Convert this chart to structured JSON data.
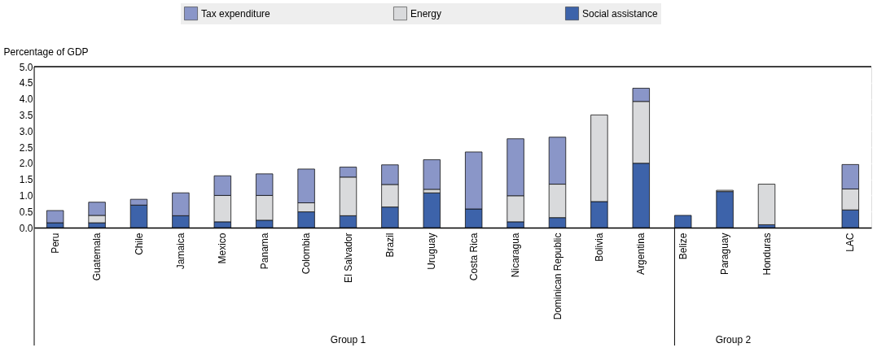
{
  "chart_data": {
    "type": "bar",
    "stacked": true,
    "ylabel": "Percentage of GDP",
    "categories": [
      "Peru",
      "Guatemala",
      "Chile",
      "Jamaica",
      "Mexico",
      "Panama",
      "Colombia",
      "El Salvador",
      "Brazil",
      "Uruguay",
      "Costa Rica",
      "Nicaragua",
      "Dominican Republic",
      "Bolivia",
      "Argentina",
      "Belize",
      "Paraguay",
      "Honduras",
      null,
      "LAC"
    ],
    "series": [
      {
        "name": "Social assistance",
        "color": "#3d63aa",
        "values": [
          0.15,
          0.15,
          0.7,
          0.37,
          0.18,
          0.23,
          0.49,
          0.37,
          0.64,
          1.08,
          0.58,
          0.18,
          0.31,
          0.81,
          2.0,
          0.38,
          1.12,
          0.09,
          null,
          0.55
        ]
      },
      {
        "name": "Energy",
        "color": "#d9dadc",
        "values": [
          null,
          0.23,
          null,
          null,
          0.82,
          0.77,
          0.28,
          1.2,
          0.7,
          0.11,
          null,
          0.81,
          1.04,
          2.69,
          1.92,
          null,
          0.04,
          1.26,
          null,
          0.65
        ]
      },
      {
        "name": "Tax expenditure",
        "color": "#8a96c8",
        "values": [
          0.38,
          0.41,
          0.18,
          0.71,
          0.61,
          0.67,
          1.05,
          0.31,
          0.61,
          0.92,
          1.77,
          1.77,
          1.46,
          null,
          0.41,
          null,
          null,
          null,
          null,
          0.76
        ]
      }
    ],
    "ylim": [
      0,
      5
    ],
    "yticks": [
      {
        "value": 0,
        "label": "0.0"
      },
      {
        "value": 0.5,
        "label": "0.5"
      },
      {
        "value": 1,
        "label": "1.0"
      },
      {
        "value": 1.5,
        "label": "1.5"
      },
      {
        "value": 2,
        "label": "2.0"
      },
      {
        "value": 2.5,
        "label": "2.5"
      },
      {
        "value": 3,
        "label": "3.0"
      },
      {
        "value": 3.5,
        "label": "3.5"
      },
      {
        "value": 4,
        "label": "4.0"
      },
      {
        "value": 4.5,
        "label": "4.5"
      },
      {
        "value": 5,
        "label": "5.0"
      }
    ],
    "grid": true,
    "legend": "top",
    "annotations": [
      "Group 1",
      "Group 2"
    ]
  }
}
